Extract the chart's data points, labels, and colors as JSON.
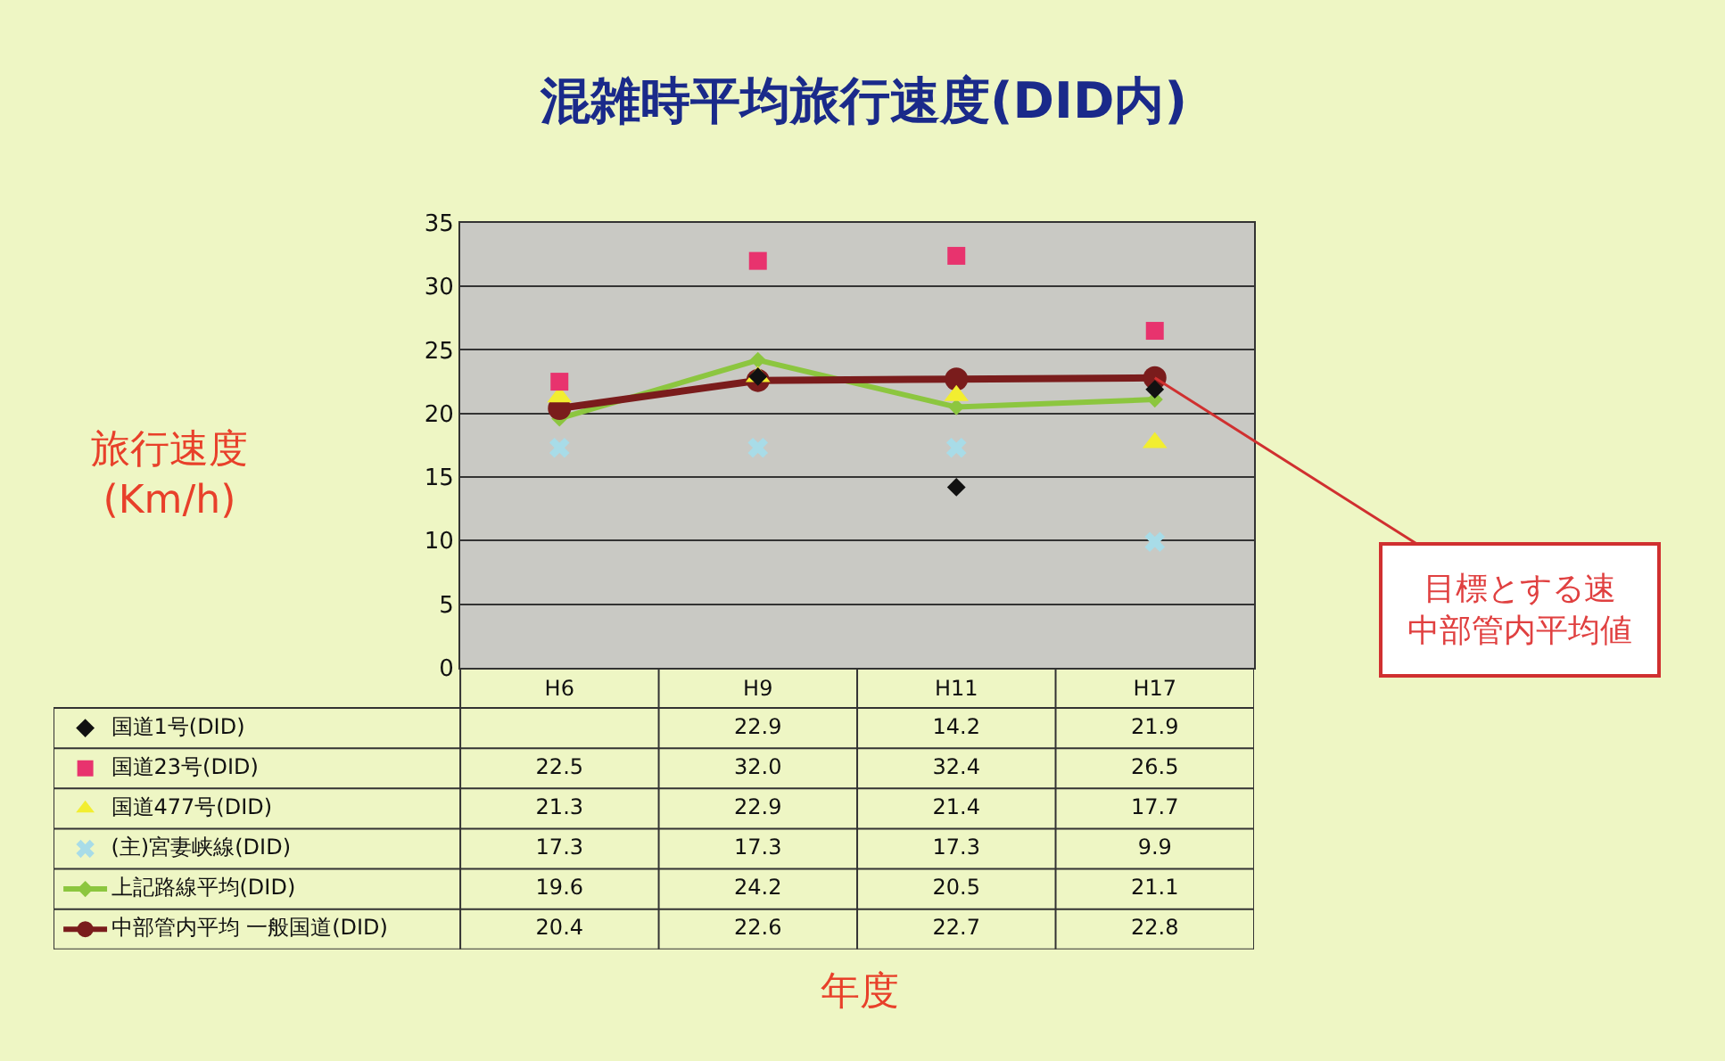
{
  "chart_data": {
    "type": "line",
    "title": "混雑時平均旅行速度(DID内)",
    "ylabel": "旅行速度\n(Km/h)",
    "categories": [
      "H6",
      "H9",
      "H11",
      "H17"
    ],
    "series": [
      {
        "name": "国道1号(DID)",
        "type": "scatter",
        "marker": "diamond",
        "color": "#111111",
        "values": [
          null,
          22.9,
          14.2,
          21.9
        ],
        "value_labels": [
          null,
          "22.9",
          "14.2",
          "21.9"
        ]
      },
      {
        "name": "国道23号(DID)",
        "type": "scatter",
        "marker": "square",
        "color": "#e8336e",
        "values": [
          22.5,
          32.0,
          32.4,
          26.5
        ],
        "value_labels": [
          "22.5",
          "32.0",
          "32.4",
          "26.5"
        ]
      },
      {
        "name": "国道477号(DID)",
        "type": "scatter",
        "marker": "triangle",
        "color": "#f2ee30",
        "values": [
          21.3,
          22.9,
          21.4,
          17.7
        ],
        "value_labels": [
          "21.3",
          "22.9",
          "21.4",
          "17.7"
        ]
      },
      {
        "name": "(主)宮妻峡線(DID)",
        "type": "scatter",
        "marker": "cross",
        "color": "#a8dce8",
        "values": [
          17.3,
          17.3,
          17.3,
          9.9
        ],
        "value_labels": [
          "17.3",
          "17.3",
          "17.3",
          "9.9"
        ]
      },
      {
        "name": "上記路線平均(DID)",
        "marker": "diamond",
        "color": "#8cc63f",
        "values": [
          19.6,
          24.2,
          20.5,
          21.1
        ],
        "value_labels": [
          "19.6",
          "24.2",
          "20.5",
          "21.1"
        ]
      },
      {
        "name": "中部管内平均 一般国道(DID)",
        "marker": "circle",
        "color": "#7a1c1c",
        "values": [
          20.4,
          22.6,
          22.7,
          22.8
        ],
        "value_labels": [
          "20.4",
          "22.6",
          "22.7",
          "22.8"
        ]
      }
    ],
    "ylim": [
      0,
      35
    ],
    "yticks": [
      0,
      5,
      10,
      15,
      20,
      25,
      30,
      35
    ],
    "grid": "y",
    "legend": "bottom left",
    "annotations": [
      {
        "text": "目標とする速中部管内平均値",
        "x": "H17",
        "y": 22.8
      },
      "年度"
    ]
  }
}
